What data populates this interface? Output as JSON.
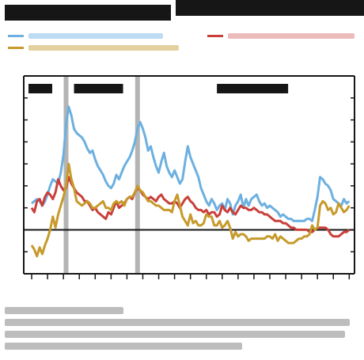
{
  "colors": {
    "background": "#ffffff",
    "ink": "#161616",
    "series_blue": "#6cb0e0",
    "series_red": "#c9403b",
    "series_gold": "#c69a2b",
    "recession_bar": "#b4b4b4"
  },
  "chart_data": {
    "type": "line",
    "x": [
      0,
      1,
      2,
      3,
      4,
      5,
      6,
      7,
      8,
      9,
      10,
      11,
      12,
      13,
      14,
      15,
      16,
      17,
      18,
      19,
      20,
      21,
      22,
      23,
      24,
      25,
      26,
      27,
      28,
      29,
      30,
      31,
      32,
      33,
      34,
      35,
      36,
      37,
      38,
      39,
      40,
      41,
      42,
      43,
      44,
      45,
      46,
      47,
      48,
      49,
      50,
      51,
      52,
      53,
      54,
      55,
      56,
      57,
      58,
      59,
      60,
      61,
      62,
      63,
      64,
      65,
      66,
      67,
      68,
      69,
      70,
      71,
      72,
      73,
      74,
      75,
      76,
      77,
      78,
      79,
      80,
      81,
      82,
      83,
      84,
      85,
      86,
      87,
      88,
      89,
      90,
      91,
      92,
      93,
      94,
      95,
      96,
      97,
      98,
      99,
      100,
      101,
      102,
      103,
      104,
      105,
      106,
      107,
      108,
      109,
      110,
      111,
      112,
      113,
      114,
      115,
      116,
      117,
      118,
      119,
      120
    ],
    "series": [
      {
        "color": "#6cb0e0",
        "values": [
          3.2,
          3.3,
          3.4,
          3.3,
          3.1,
          3.3,
          3.6,
          4.0,
          4.3,
          4.2,
          4.1,
          4.6,
          5.4,
          6.8,
          7.6,
          7.2,
          6.6,
          6.4,
          6.3,
          6.2,
          6.0,
          5.7,
          5.5,
          5.6,
          5.2,
          4.9,
          4.7,
          4.5,
          4.2,
          4.0,
          3.9,
          4.1,
          4.5,
          4.3,
          4.6,
          4.9,
          5.1,
          5.3,
          5.6,
          6.0,
          6.6,
          6.9,
          6.6,
          6.2,
          5.6,
          5.8,
          5.3,
          4.9,
          4.6,
          5.1,
          5.5,
          4.9,
          4.6,
          4.4,
          4.7,
          4.4,
          4.1,
          4.3,
          5.1,
          5.8,
          5.3,
          5.0,
          4.7,
          4.4,
          3.9,
          3.6,
          3.3,
          3.1,
          3.4,
          3.2,
          2.9,
          3.1,
          3.2,
          2.9,
          3.4,
          3.2,
          2.7,
          3.1,
          3.3,
          3.6,
          3.0,
          3.4,
          3.1,
          3.4,
          3.5,
          3.6,
          3.3,
          3.1,
          3.2,
          3.0,
          3.1,
          3.0,
          2.9,
          2.8,
          2.6,
          2.7,
          2.6,
          2.5,
          2.5,
          2.4,
          2.4,
          2.4,
          2.4,
          2.4,
          2.5,
          2.5,
          2.4,
          2.9,
          3.5,
          4.4,
          4.3,
          4.1,
          4.0,
          3.8,
          3.4,
          3.3,
          3.2,
          3.1,
          3.4,
          3.2,
          3.3
        ]
      },
      {
        "color": "#c9403b",
        "values": [
          3.0,
          2.8,
          3.3,
          3.4,
          3.1,
          3.5,
          3.7,
          3.6,
          3.4,
          3.7,
          4.3,
          4.0,
          3.8,
          3.9,
          4.4,
          4.1,
          3.9,
          3.7,
          3.6,
          3.5,
          3.3,
          3.3,
          3.1,
          2.9,
          3.0,
          2.8,
          2.7,
          2.6,
          2.5,
          2.8,
          2.7,
          3.0,
          3.3,
          3.0,
          3.1,
          3.2,
          3.4,
          3.5,
          3.4,
          3.7,
          3.9,
          3.8,
          3.6,
          3.5,
          3.4,
          3.5,
          3.4,
          3.3,
          3.5,
          3.6,
          3.4,
          3.3,
          3.2,
          3.2,
          3.3,
          3.2,
          3.0,
          3.2,
          3.4,
          3.5,
          3.3,
          3.2,
          3.0,
          2.9,
          2.9,
          2.8,
          2.9,
          2.7,
          2.8,
          2.8,
          2.6,
          2.7,
          3.1,
          2.9,
          2.8,
          3.0,
          2.8,
          2.7,
          2.9,
          3.1,
          3.0,
          3.0,
          2.9,
          2.9,
          3.0,
          2.9,
          2.8,
          2.8,
          2.7,
          2.7,
          2.6,
          2.5,
          2.4,
          2.4,
          2.4,
          2.3,
          2.3,
          2.2,
          2.1,
          2.1,
          2.0,
          2.0,
          2.0,
          2.0,
          2.0,
          1.9,
          1.9,
          2.0,
          2.1,
          2.1,
          2.1,
          2.1,
          2.0,
          1.8,
          1.7,
          1.7,
          1.7,
          1.8,
          1.9,
          1.9,
          2.0
        ]
      },
      {
        "color": "#c69a2b",
        "values": [
          1.3,
          1.1,
          0.8,
          1.2,
          0.9,
          1.3,
          1.6,
          2.0,
          2.6,
          2.1,
          2.7,
          3.1,
          3.5,
          4.0,
          5.0,
          4.3,
          3.9,
          3.3,
          3.2,
          3.1,
          3.2,
          3.3,
          3.2,
          3.0,
          3.0,
          3.1,
          3.2,
          3.3,
          3.0,
          3.0,
          2.9,
          3.2,
          3.3,
          3.2,
          3.3,
          3.1,
          3.4,
          3.5,
          3.5,
          3.7,
          4.0,
          3.8,
          3.7,
          3.5,
          3.3,
          3.3,
          3.2,
          3.1,
          3.1,
          3.0,
          2.9,
          2.9,
          2.9,
          2.8,
          3.3,
          3.6,
          3.1,
          2.6,
          2.4,
          2.2,
          2.7,
          2.3,
          2.4,
          2.2,
          2.2,
          2.3,
          2.7,
          2.6,
          2.6,
          2.2,
          2.2,
          2.4,
          2.1,
          2.2,
          2.4,
          2.1,
          1.6,
          1.9,
          1.7,
          1.8,
          1.8,
          1.7,
          1.5,
          1.6,
          1.6,
          1.6,
          1.6,
          1.6,
          1.6,
          1.7,
          1.7,
          1.6,
          1.8,
          1.5,
          1.7,
          1.6,
          1.5,
          1.4,
          1.4,
          1.4,
          1.5,
          1.6,
          1.6,
          1.7,
          1.7,
          1.8,
          2.2,
          2.0,
          2.1,
          3.1,
          3.3,
          3.2,
          2.9,
          3.0,
          2.7,
          2.8,
          3.2,
          3.0,
          2.8,
          2.9,
          3.1
        ]
      }
    ],
    "ylim": [
      0,
      9
    ],
    "xlim": [
      -3,
      122
    ],
    "recession_bands": [
      13,
      40
    ],
    "reference_line": 2,
    "grid": false
  }
}
